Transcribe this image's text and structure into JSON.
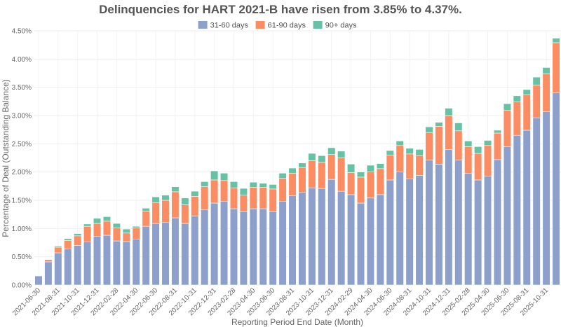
{
  "chart_data": {
    "type": "bar",
    "stacked": true,
    "title": "Delinquencies for HART 2021-B have risen from 3.85% to 4.37%.",
    "xlabel": "Reporting Period End Date (Month)",
    "ylabel": "Percentage of Deal (Outstanding Balance)",
    "ylim": [
      0,
      4.5
    ],
    "yticks": [
      "0.00%",
      "0.50%",
      "1.00%",
      "1.50%",
      "2.00%",
      "2.50%",
      "3.00%",
      "3.50%",
      "4.00%",
      "4.50%"
    ],
    "grid": true,
    "legend_placement": "top-center",
    "categories": [
      "2021-06-30",
      "2021-07-31",
      "2021-08-31",
      "2021-09-30",
      "2021-10-31",
      "2021-11-30",
      "2021-12-31",
      "2022-01-31",
      "2022-02-28",
      "2022-03-31",
      "2022-04-30",
      "2022-05-31",
      "2022-06-30",
      "2022-07-31",
      "2022-08-31",
      "2022-09-30",
      "2022-10-31",
      "2022-11-30",
      "2022-12-31",
      "2023-01-31",
      "2023-02-28",
      "2023-03-31",
      "2023-04-30",
      "2023-05-31",
      "2023-06-30",
      "2023-07-31",
      "2023-08-31",
      "2023-09-30",
      "2023-10-31",
      "2023-11-30",
      "2023-12-31",
      "2024-01-31",
      "2024-02-29",
      "2024-03-31",
      "2024-04-30",
      "2024-05-31",
      "2024-06-30",
      "2024-07-31",
      "2024-08-31",
      "2024-09-30",
      "2024-10-31",
      "2024-11-30",
      "2024-12-31",
      "2025-01-31",
      "2025-02-28",
      "2025-03-31",
      "2025-04-30",
      "2025-05-31",
      "2025-06-30",
      "2025-07-31",
      "2025-08-31",
      "2025-09-30",
      "2025-10-31",
      "2025-11-30"
    ],
    "xtick_labels": [
      "2021-06-30",
      "2021-08-31",
      "2021-10-31",
      "2021-12-31",
      "2022-02-28",
      "2022-04-30",
      "2022-06-30",
      "2022-08-31",
      "2022-10-31",
      "2022-12-31",
      "2023-02-28",
      "2023-04-30",
      "2023-06-30",
      "2023-08-31",
      "2023-10-31",
      "2023-12-31",
      "2024-02-29",
      "2024-04-30",
      "2024-06-30",
      "2024-08-31",
      "2024-10-31",
      "2024-12-31",
      "2025-02-28",
      "2025-04-30",
      "2025-06-30",
      "2025-08-31",
      "2025-10-31"
    ],
    "series": [
      {
        "name": "31-60 days",
        "color": "#8da0cb",
        "values": [
          0.16,
          0.41,
          0.57,
          0.64,
          0.7,
          0.76,
          0.86,
          0.88,
          0.78,
          0.77,
          0.81,
          1.04,
          1.09,
          1.11,
          1.19,
          1.09,
          1.22,
          1.33,
          1.45,
          1.48,
          1.35,
          1.3,
          1.35,
          1.35,
          1.3,
          1.48,
          1.58,
          1.64,
          1.72,
          1.71,
          1.87,
          1.66,
          1.6,
          1.45,
          1.54,
          1.6,
          1.86,
          2.0,
          1.88,
          1.94,
          2.21,
          2.14,
          2.4,
          2.21,
          1.98,
          1.86,
          1.93,
          2.22,
          2.45,
          2.65,
          2.74,
          2.96,
          3.07,
          3.4
        ]
      },
      {
        "name": "61-90 days",
        "color": "#fc8d62",
        "values": [
          0,
          0.04,
          0.1,
          0.15,
          0.17,
          0.28,
          0.23,
          0.25,
          0.23,
          0.15,
          0.2,
          0.27,
          0.37,
          0.39,
          0.46,
          0.33,
          0.35,
          0.41,
          0.41,
          0.37,
          0.37,
          0.29,
          0.38,
          0.38,
          0.4,
          0.41,
          0.4,
          0.44,
          0.48,
          0.46,
          0.44,
          0.59,
          0.39,
          0.46,
          0.46,
          0.46,
          0.44,
          0.47,
          0.44,
          0.35,
          0.49,
          0.67,
          0.6,
          0.52,
          0.47,
          0.47,
          0.54,
          0.47,
          0.64,
          0.59,
          0.63,
          0.58,
          0.67,
          0.89
        ]
      },
      {
        "name": "90+ days",
        "color": "#66c2a5",
        "values": [
          0,
          0,
          0.02,
          0.03,
          0.04,
          0.04,
          0.09,
          0.08,
          0.08,
          0.07,
          0.03,
          0.05,
          0.1,
          0.09,
          0.09,
          0.12,
          0.09,
          0.09,
          0.16,
          0.13,
          0.11,
          0.12,
          0.09,
          0.07,
          0.08,
          0.09,
          0.09,
          0.08,
          0.13,
          0.12,
          0.12,
          0.12,
          0.15,
          0.09,
          0.12,
          0.09,
          0.08,
          0.08,
          0.1,
          0.11,
          0.1,
          0.07,
          0.13,
          0.14,
          0.1,
          0.12,
          0.09,
          0.05,
          0.12,
          0.11,
          0.09,
          0.14,
          0.11,
          0.08
        ]
      }
    ]
  }
}
